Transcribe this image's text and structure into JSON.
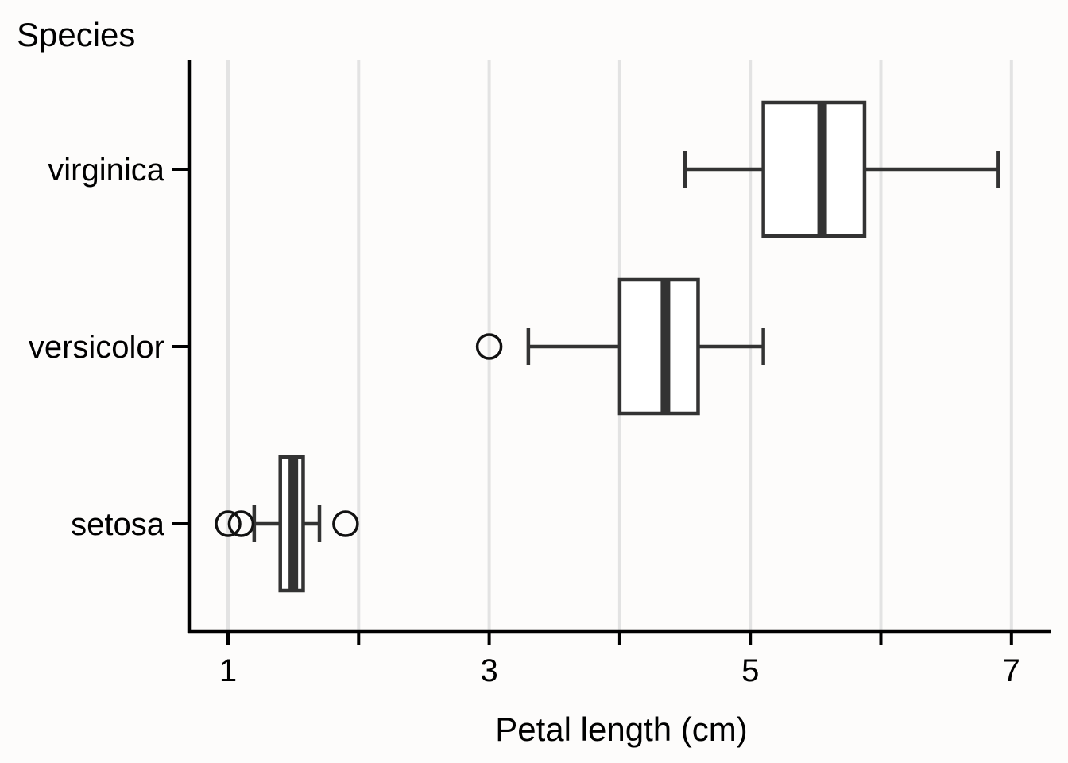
{
  "chart_data": {
    "type": "boxplot",
    "orientation": "horizontal",
    "title": "",
    "ylabel": "Species",
    "xlabel": "Petal length (cm)",
    "xlim": [
      0.7,
      7.3
    ],
    "x_ticks": [
      1,
      2,
      3,
      4,
      5,
      6,
      7
    ],
    "x_tick_labels": [
      "1",
      "",
      "3",
      "",
      "5",
      "",
      "7"
    ],
    "grid": "vertical",
    "categories": [
      "setosa",
      "versicolor",
      "virginica"
    ],
    "boxes": [
      {
        "category": "setosa",
        "whisker_low": 1.2,
        "q1": 1.4,
        "median": 1.5,
        "q3": 1.575,
        "whisker_high": 1.7,
        "outliers": [
          1.0,
          1.1,
          1.9
        ]
      },
      {
        "category": "versicolor",
        "whisker_low": 3.3,
        "q1": 4.0,
        "median": 4.35,
        "q3": 4.6,
        "whisker_high": 5.1,
        "outliers": [
          3.0
        ]
      },
      {
        "category": "virginica",
        "whisker_low": 4.5,
        "q1": 5.1,
        "median": 5.55,
        "q3": 5.875,
        "whisker_high": 6.9,
        "outliers": []
      }
    ],
    "colors": {
      "box_stroke": "#333333",
      "box_fill": "#ffffff",
      "grid": "#e3e3e3",
      "axis": "#000000",
      "background": "#fdfcfb"
    }
  }
}
